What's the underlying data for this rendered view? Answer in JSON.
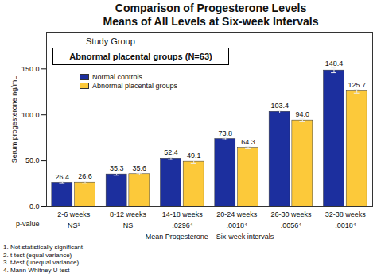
{
  "chart_data": {
    "type": "bar",
    "title": "Comparison of Progesterone Levels",
    "subtitle": "Means of All Levels at Six-week Intervals",
    "study_group": {
      "label": "Study Group",
      "box": "Abnormal placental groups (N=63)"
    },
    "x_label": "Mean Progesterone – Six-week intervals",
    "y_label": "Serum progesterone ng/mL",
    "categories": [
      "2-6 weeks",
      "8-12 weeks",
      "14-18 weeks",
      "20-24 weeks",
      "26-30 weeks",
      "32-38 weeks"
    ],
    "series": [
      {
        "name": "Normal controls",
        "color": "#1c2f9e",
        "values": [
          26.4,
          35.3,
          52.4,
          73.8,
          103.4,
          148.4
        ],
        "value_labels": [
          "26.4",
          "35.3",
          "52.4",
          "73.8",
          "103.4",
          "148.4"
        ],
        "errors": [
          1.0,
          1.0,
          1.2,
          1.0,
          1.5,
          2.5
        ]
      },
      {
        "name": "Abnormal placental groups",
        "color": "#fcc93a",
        "values": [
          26.6,
          35.6,
          49.1,
          64.3,
          94.0,
          125.7
        ],
        "value_labels": [
          "26.6",
          "35.6",
          "49.1",
          "64.3",
          "94.0",
          "125.7"
        ],
        "errors": [
          1.0,
          1.0,
          1.5,
          1.2,
          1.5,
          2.0
        ]
      }
    ],
    "p_values": {
      "label": "p-value",
      "values": [
        "NS¹",
        "NS",
        ".0296⁴",
        ".0018⁴",
        ".0056⁴",
        ".0018⁴"
      ]
    },
    "footnotes": [
      "1. Not statistically significant",
      "2. t-test (equal variance)",
      "3. t-test (unequal variance)",
      "4. Mann-Whitney U test"
    ],
    "ylim": [
      0,
      190
    ],
    "yticks": [
      {
        "value": 0,
        "label": "0.0"
      },
      {
        "value": 50,
        "label": "50.0"
      },
      {
        "value": 100,
        "label": "100.0"
      },
      {
        "value": 150,
        "label": "150.0"
      }
    ],
    "grid": false,
    "legend": "top-left",
    "data_labels": true
  }
}
